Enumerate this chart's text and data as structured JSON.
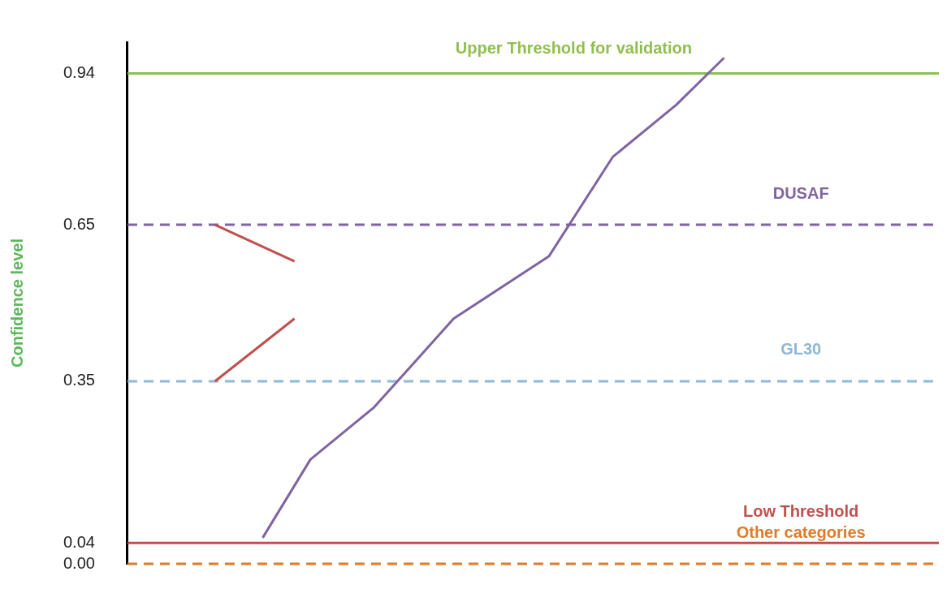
{
  "chart_data": {
    "type": "line",
    "ylabel": "Confidence level",
    "categories": [
      null,
      null,
      null,
      null,
      null,
      null,
      null,
      null,
      null,
      null,
      null,
      null,
      null,
      null,
      null,
      null,
      null,
      null,
      null,
      null,
      null,
      null,
      null,
      null,
      null,
      null,
      null,
      null,
      null,
      null,
      null,
      null,
      null,
      null,
      null,
      null,
      null,
      null,
      null,
      null,
      null,
      null,
      null,
      null,
      null,
      null,
      null,
      null,
      null,
      null,
      null
    ],
    "ylim": [
      0,
      1.0
    ],
    "yticks": [
      {
        "value": 0,
        "label": "0.00"
      },
      0.04,
      0.35,
      0.65,
      0.94
    ],
    "tick_labels": "y",
    "grid": false,
    "legend": false,
    "marker": "none",
    "series": [
      {
        "color": "#8064a2",
        "values": [
          null,
          null,
          null,
          null,
          null,
          null,
          null,
          null,
          0.05,
          null,
          null,
          0.2,
          null,
          null,
          null,
          0.3,
          null,
          null,
          null,
          null,
          0.47,
          null,
          null,
          null,
          null,
          null,
          0.59,
          null,
          null,
          null,
          0.78,
          null,
          null,
          null,
          0.88,
          null,
          null,
          0.97,
          null,
          null,
          null,
          null,
          null,
          null,
          null,
          null,
          null,
          null,
          null,
          null,
          null
        ]
      },
      {
        "color": "#c0504d",
        "values": [
          null,
          null,
          null,
          null,
          null,
          0.65,
          null,
          null,
          null,
          null,
          0.58,
          null,
          null,
          null,
          null,
          null,
          null,
          null,
          null,
          null,
          null,
          null,
          null,
          null,
          null,
          null,
          null,
          null,
          null,
          null,
          null,
          null,
          null,
          null,
          null,
          null,
          null,
          null,
          null,
          null,
          null,
          null,
          null,
          null,
          null,
          null,
          null,
          null,
          null,
          null,
          null
        ]
      },
      {
        "color": "#c0504d",
        "values": [
          null,
          null,
          null,
          null,
          null,
          0.35,
          null,
          null,
          null,
          null,
          0.47,
          null,
          null,
          null,
          null,
          null,
          null,
          null,
          null,
          null,
          null,
          null,
          null,
          null,
          null,
          null,
          null,
          null,
          null,
          null,
          null,
          null,
          null,
          null,
          null,
          null,
          null,
          null,
          null,
          null,
          null,
          null,
          null,
          null,
          null,
          null,
          null,
          null,
          null,
          null,
          null
        ]
      }
    ],
    "ref_lines": [
      {
        "axis": "y",
        "value": 0.94,
        "label": "Upper Threshold for validation",
        "color": "#8fbf4f",
        "line_style": "solid"
      },
      {
        "axis": "y",
        "value": 0.65,
        "label": "DUSAF",
        "color": "#8064a2",
        "line_style": "dashed"
      },
      {
        "axis": "y",
        "value": 0.35,
        "label": "GL30",
        "color": "#8fb7d6",
        "line_style": "dashed"
      },
      {
        "axis": "y",
        "value": 0.04,
        "label": "Low Threshold",
        "color": "#c0504d",
        "line_style": "solid"
      },
      {
        "axis": "y",
        "value": 0.0,
        "label": "Other categories",
        "color": "#e07b2a",
        "line_style": "dashed"
      }
    ]
  }
}
